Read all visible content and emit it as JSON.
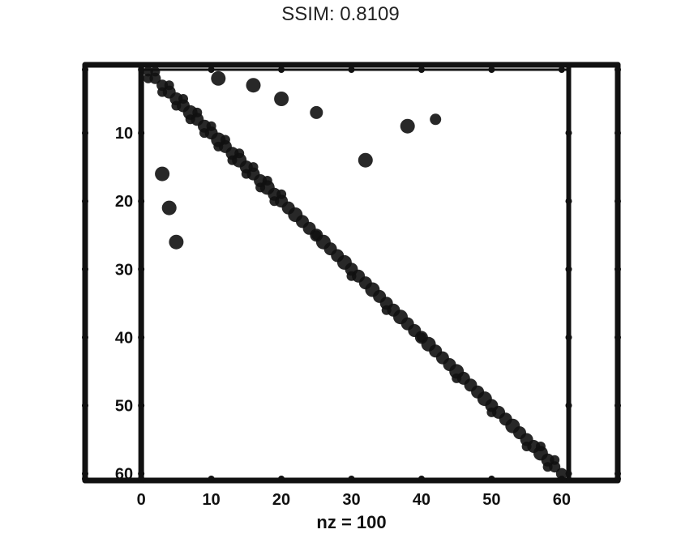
{
  "chart_data": {
    "type": "scatter",
    "title": "SSIM: 0.8109",
    "xlabel": "nz = 100",
    "ylabel": "",
    "xlim": [
      -8,
      68
    ],
    "ylim": [
      61,
      0
    ],
    "x_ticks": [
      "0",
      "10",
      "20",
      "30",
      "40",
      "50",
      "60"
    ],
    "y_ticks": [
      "10",
      "20",
      "30",
      "40",
      "50",
      "60"
    ],
    "grid": false,
    "legend": "none",
    "marker_color": "#111111",
    "points": [
      [
        1,
        1
      ],
      [
        2,
        2
      ],
      [
        3,
        3
      ],
      [
        4,
        4
      ],
      [
        5,
        5
      ],
      [
        6,
        6
      ],
      [
        7,
        7
      ],
      [
        8,
        8
      ],
      [
        9,
        9
      ],
      [
        10,
        10
      ],
      [
        11,
        11
      ],
      [
        12,
        12
      ],
      [
        13,
        13
      ],
      [
        14,
        14
      ],
      [
        15,
        15
      ],
      [
        16,
        16
      ],
      [
        17,
        17
      ],
      [
        18,
        18
      ],
      [
        19,
        19
      ],
      [
        20,
        20
      ],
      [
        21,
        21
      ],
      [
        22,
        22
      ],
      [
        23,
        23
      ],
      [
        24,
        24
      ],
      [
        25,
        25
      ],
      [
        26,
        26
      ],
      [
        27,
        27
      ],
      [
        28,
        28
      ],
      [
        29,
        29
      ],
      [
        30,
        30
      ],
      [
        31,
        31
      ],
      [
        32,
        32
      ],
      [
        33,
        33
      ],
      [
        34,
        34
      ],
      [
        35,
        35
      ],
      [
        36,
        36
      ],
      [
        37,
        37
      ],
      [
        38,
        38
      ],
      [
        39,
        39
      ],
      [
        40,
        40
      ],
      [
        41,
        41
      ],
      [
        42,
        42
      ],
      [
        43,
        43
      ],
      [
        44,
        44
      ],
      [
        45,
        45
      ],
      [
        46,
        46
      ],
      [
        47,
        47
      ],
      [
        48,
        48
      ],
      [
        49,
        49
      ],
      [
        50,
        50
      ],
      [
        51,
        51
      ],
      [
        52,
        52
      ],
      [
        53,
        53
      ],
      [
        54,
        54
      ],
      [
        55,
        55
      ],
      [
        56,
        56
      ],
      [
        57,
        57
      ],
      [
        58,
        58
      ],
      [
        59,
        59
      ],
      [
        60,
        60
      ],
      [
        2,
        1
      ],
      [
        4,
        3
      ],
      [
        6,
        5
      ],
      [
        8,
        7
      ],
      [
        10,
        9
      ],
      [
        12,
        11
      ],
      [
        14,
        13
      ],
      [
        16,
        15
      ],
      [
        18,
        17
      ],
      [
        20,
        19
      ],
      [
        1,
        2
      ],
      [
        3,
        4
      ],
      [
        5,
        6
      ],
      [
        7,
        8
      ],
      [
        9,
        10
      ],
      [
        11,
        12
      ],
      [
        13,
        14
      ],
      [
        15,
        16
      ],
      [
        17,
        18
      ],
      [
        19,
        20
      ],
      [
        25,
        25
      ],
      [
        30,
        31
      ],
      [
        35,
        36
      ],
      [
        40,
        40
      ],
      [
        45,
        46
      ],
      [
        50,
        51
      ],
      [
        55,
        56
      ],
      [
        58,
        59
      ],
      [
        59,
        58
      ],
      [
        57,
        56
      ],
      [
        11,
        2
      ],
      [
        16,
        3
      ],
      [
        20,
        5
      ],
      [
        25,
        7
      ],
      [
        38,
        9
      ],
      [
        42,
        8
      ],
      [
        32,
        14
      ],
      [
        3,
        16
      ],
      [
        4,
        21
      ],
      [
        5,
        26
      ]
    ],
    "sizes": [
      6,
      7,
      7,
      8,
      8,
      8,
      9,
      8,
      8,
      8,
      9,
      8,
      8,
      9,
      8,
      8,
      8,
      9,
      8,
      8,
      8,
      9,
      8,
      8,
      8,
      9,
      8,
      8,
      9,
      8,
      8,
      8,
      9,
      8,
      8,
      8,
      9,
      8,
      8,
      8,
      9,
      8,
      8,
      8,
      9,
      8,
      8,
      8,
      9,
      8,
      8,
      8,
      9,
      8,
      8,
      8,
      9,
      8,
      7,
      7,
      6,
      6,
      6,
      6,
      6,
      6,
      6,
      6,
      6,
      6,
      6,
      6,
      6,
      6,
      6,
      6,
      6,
      6,
      6,
      6,
      6,
      6,
      6,
      6,
      6,
      6,
      6,
      6,
      6,
      6,
      9,
      9,
      9,
      8,
      9,
      7,
      9,
      9,
      9,
      9
    ]
  }
}
